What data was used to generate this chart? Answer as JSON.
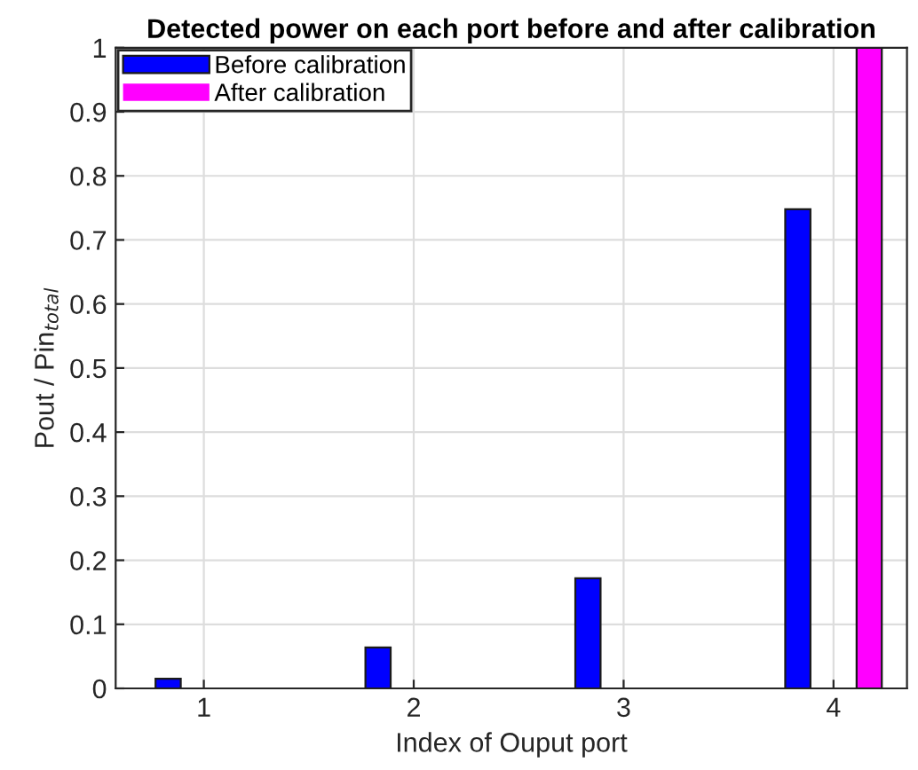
{
  "chart_data": {
    "type": "bar",
    "title": "Detected power on each port before and after calibration",
    "xlabel": "Index of Ouput port",
    "ylabel": "Pout / Pin$_{total}$",
    "categories": [
      "1",
      "2",
      "3",
      "4"
    ],
    "series": [
      {
        "name": "Before calibration",
        "color": "#0000ff",
        "values": [
          0.015,
          0.064,
          0.172,
          0.748
        ]
      },
      {
        "name": "After calibration",
        "color": "#ff00ff",
        "values": [
          0,
          0,
          0,
          1
        ]
      }
    ],
    "ylim": [
      0,
      1
    ],
    "yticks": [
      0,
      0.1,
      0.2,
      0.3,
      0.4,
      0.5,
      0.6,
      0.7,
      0.8,
      0.9,
      1
    ],
    "grid": true,
    "legend": "top left"
  }
}
